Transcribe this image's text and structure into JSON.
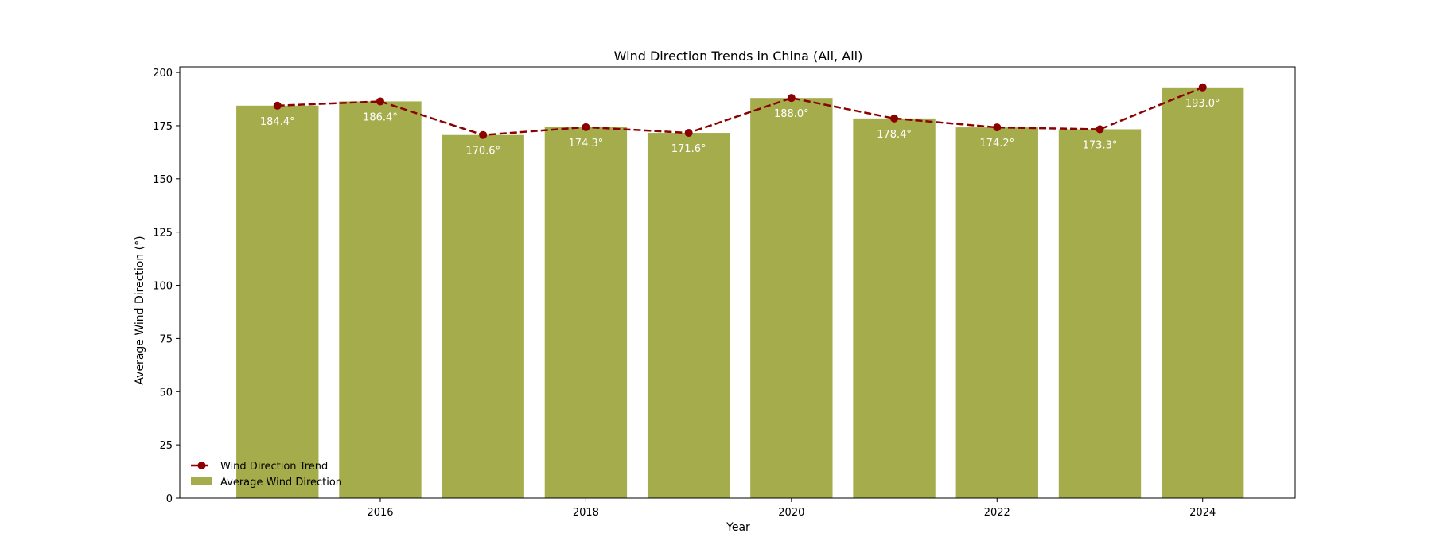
{
  "chart_data": {
    "type": "bar",
    "title": "Wind Direction Trends in China (All, All)",
    "xlabel": "Year",
    "ylabel": "Average Wind Direction (°)",
    "x": [
      2015,
      2016,
      2017,
      2018,
      2019,
      2020,
      2021,
      2022,
      2023,
      2024
    ],
    "x_ticks": [
      2016,
      2018,
      2020,
      2022,
      2024
    ],
    "xlim": [
      2014.05,
      2024.9
    ],
    "ylim": [
      0,
      202.65
    ],
    "y_ticks": [
      0,
      25,
      50,
      75,
      100,
      125,
      150,
      175,
      200
    ],
    "series": [
      {
        "name": "Average Wind Direction",
        "type": "bar",
        "color": "#a5ac4c",
        "values": [
          184.4,
          186.4,
          170.6,
          174.3,
          171.6,
          188.0,
          178.4,
          174.2,
          173.3,
          193.0
        ],
        "labels": [
          "184.4°",
          "186.4°",
          "170.6°",
          "174.3°",
          "171.6°",
          "188.0°",
          "178.4°",
          "174.2°",
          "173.3°",
          "193.0°"
        ]
      },
      {
        "name": "Wind Direction Trend",
        "type": "line",
        "style": "dashed",
        "marker": "circle",
        "color": "#8b0000",
        "values": [
          184.4,
          186.4,
          170.6,
          174.3,
          171.6,
          188.0,
          178.4,
          174.2,
          173.3,
          193.0
        ]
      }
    ],
    "legend": {
      "placement": "lower-left",
      "order": [
        "Wind Direction Trend",
        "Average Wind Direction"
      ]
    },
    "grid": false
  }
}
